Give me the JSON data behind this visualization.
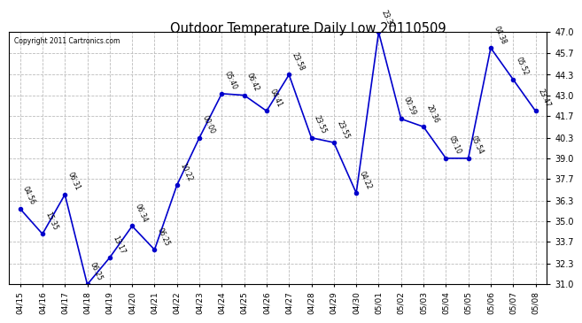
{
  "title": "Outdoor Temperature Daily Low 20110509",
  "copyright": "Copyright 2011 Cartronics.com",
  "x_labels": [
    "04/15",
    "04/16",
    "04/17",
    "04/18",
    "04/19",
    "04/20",
    "04/21",
    "04/22",
    "04/23",
    "04/24",
    "04/25",
    "04/26",
    "04/27",
    "04/28",
    "04/29",
    "04/30",
    "05/01",
    "05/02",
    "05/03",
    "05/04",
    "05/05",
    "05/06",
    "05/07",
    "05/08"
  ],
  "y_values": [
    35.8,
    34.2,
    36.7,
    31.0,
    32.7,
    34.7,
    33.2,
    37.3,
    40.3,
    43.1,
    43.0,
    42.0,
    44.3,
    40.3,
    40.0,
    36.8,
    47.0,
    41.5,
    41.0,
    39.0,
    39.0,
    46.0,
    44.0,
    42.0
  ],
  "point_labels": [
    "04:56",
    "15:35",
    "06:31",
    "06:25",
    "13:17",
    "06:34",
    "06:25",
    "10:22",
    "00:00",
    "05:40",
    "06:42",
    "04:41",
    "23:58",
    "23:55",
    "23:55",
    "04:22",
    "23:37",
    "00:59",
    "20:36",
    "05:10",
    "05:54",
    "04:38",
    "05:52",
    "23:47"
  ],
  "line_color": "#0000cc",
  "marker_color": "#0000cc",
  "bg_color": "#ffffff",
  "grid_color": "#bbbbbb",
  "ylim_min": 31.0,
  "ylim_max": 47.0,
  "yticks": [
    31.0,
    32.3,
    33.7,
    35.0,
    36.3,
    37.7,
    39.0,
    40.3,
    41.7,
    43.0,
    44.3,
    45.7,
    47.0
  ]
}
